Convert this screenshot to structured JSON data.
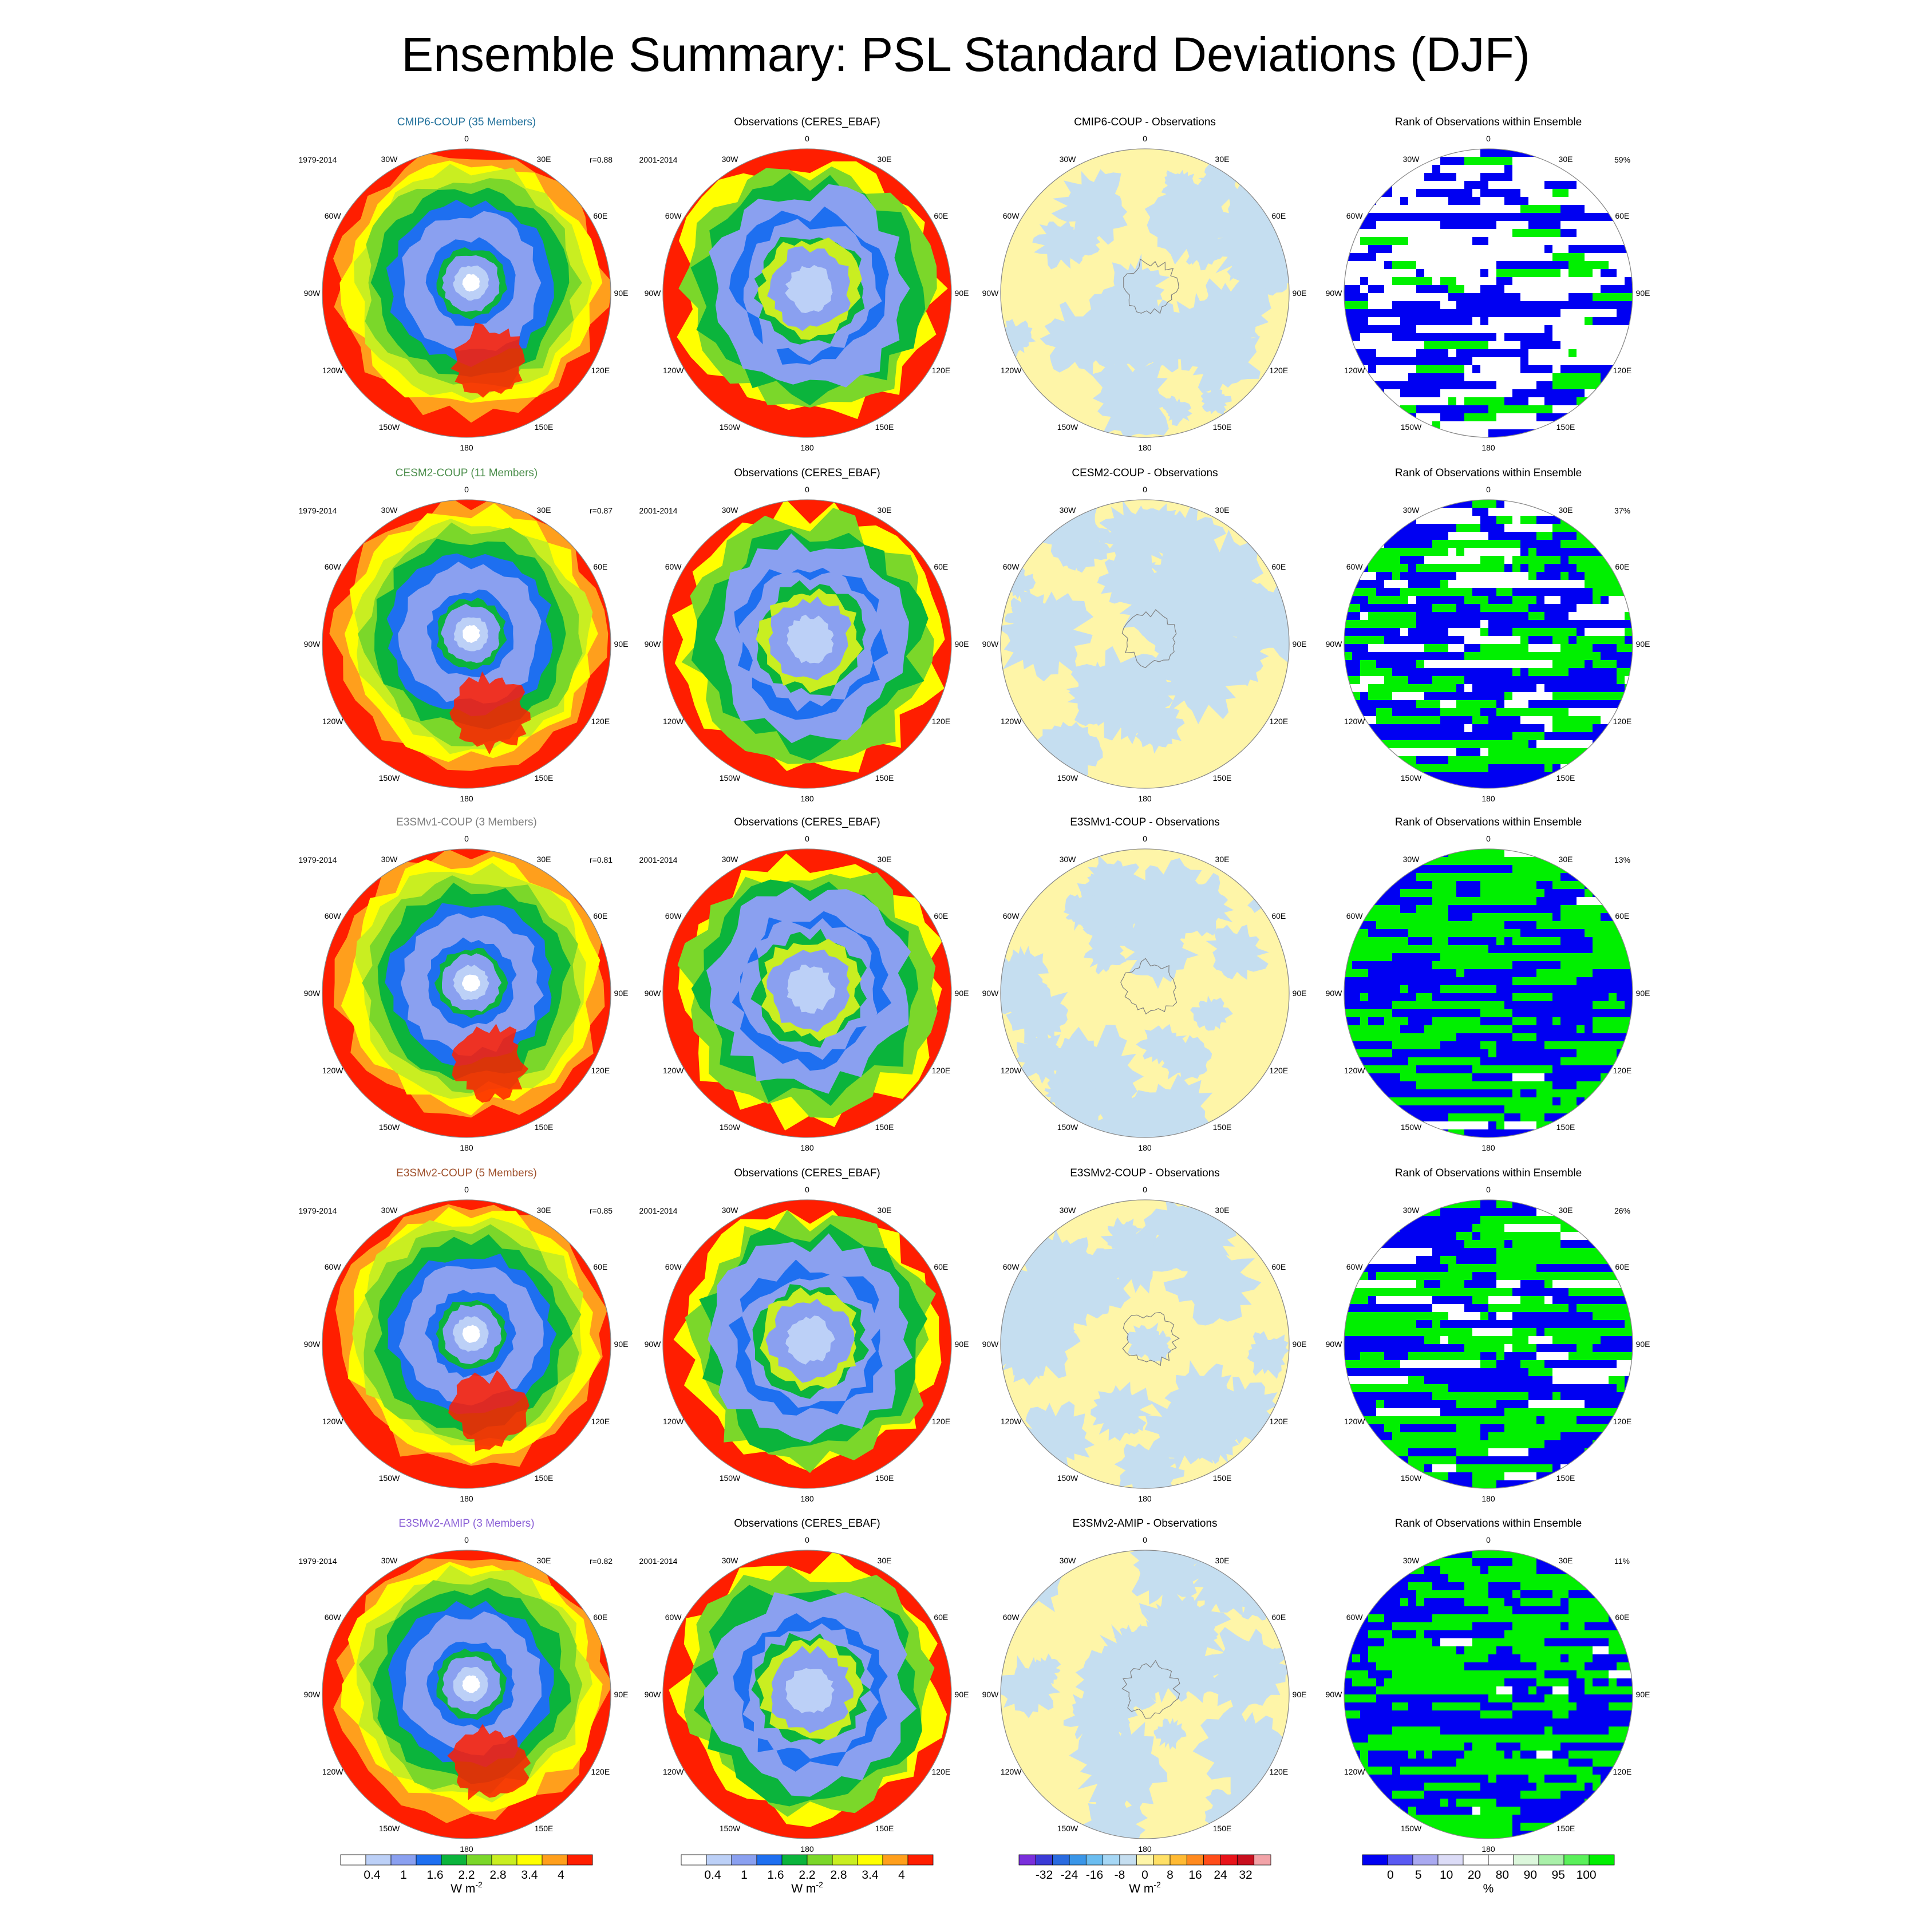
{
  "title": "Ensemble Summary: PSL Standard Deviations (DJF)",
  "lon_labels": [
    "0",
    "30E",
    "60E",
    "90E",
    "120E",
    "150E",
    "180",
    "150W",
    "120W",
    "90W",
    "60W",
    "30W"
  ],
  "colors": {
    "white": "#ffffff",
    "light_blue": "#bcd0f7",
    "periwinkle": "#8aa0f0",
    "blue": "#1e6ff0",
    "green": "#0bb43c",
    "light_green": "#7bd72a",
    "yellow_green": "#c9ee21",
    "yellow": "#ffff00",
    "orange": "#ff9f1c",
    "red": "#ff1e00",
    "diff_bg": "#fef5a8",
    "diff_neg": "#c5def0",
    "rank_blue": "#0000f2",
    "rank_green": "#00f000",
    "text_cmip6": "#1f6f9a",
    "text_cesm2": "#4d8f4d",
    "text_e3smv1": "#7f7f7f",
    "text_e3smv2coup": "#a0522d",
    "text_e3smv2amip": "#8a5fd6"
  },
  "rows": [
    {
      "model_title": "CMIP6-COUP (35 Members)",
      "model_color": "#1f6f9a",
      "model_period": "1979-2014",
      "model_corr": "r=0.88",
      "obs_title": "Observations (CERES_EBAF)",
      "obs_period": "2001-2014",
      "diff_title": "CMIP6-COUP - Observations",
      "rank_title": "Rank of Observations within Ensemble",
      "rank_pct": "59%",
      "rank_mix": {
        "blue": 0.35,
        "green": 0.12,
        "white": 0.53
      }
    },
    {
      "model_title": "CESM2-COUP (11 Members)",
      "model_color": "#4d8f4d",
      "model_period": "1979-2014",
      "model_corr": "r=0.87",
      "obs_title": "Observations (CERES_EBAF)",
      "obs_period": "2001-2014",
      "diff_title": "CESM2-COUP - Observations",
      "rank_title": "Rank of Observations within Ensemble",
      "rank_pct": "37%",
      "rank_mix": {
        "blue": 0.42,
        "green": 0.4,
        "white": 0.18
      }
    },
    {
      "model_title": "E3SMv1-COUP (3 Members)",
      "model_color": "#7f7f7f",
      "model_period": "1979-2014",
      "model_corr": "r=0.81",
      "obs_title": "Observations (CERES_EBAF)",
      "obs_period": "2001-2014",
      "diff_title": "E3SMv1-COUP - Observations",
      "rank_title": "Rank of Observations within Ensemble",
      "rank_pct": "13%",
      "rank_mix": {
        "blue": 0.52,
        "green": 0.46,
        "white": 0.02
      }
    },
    {
      "model_title": "E3SMv2-COUP (5 Members)",
      "model_color": "#a0522d",
      "model_period": "1979-2014",
      "model_corr": "r=0.85",
      "obs_title": "Observations (CERES_EBAF)",
      "obs_period": "2001-2014",
      "diff_title": "E3SMv2-COUP - Observations",
      "rank_title": "Rank of Observations within Ensemble",
      "rank_pct": "26%",
      "rank_mix": {
        "blue": 0.45,
        "green": 0.43,
        "white": 0.12
      }
    },
    {
      "model_title": "E3SMv2-AMIP (3 Members)",
      "model_color": "#8a5fd6",
      "model_period": "1979-2014",
      "model_corr": "r=0.82",
      "obs_title": "Observations (CERES_EBAF)",
      "obs_period": "2001-2014",
      "diff_title": "E3SMv2-AMIP - Observations",
      "rank_title": "Rank of Observations within Ensemble",
      "rank_pct": "11%",
      "rank_mix": {
        "blue": 0.48,
        "green": 0.5,
        "white": 0.02
      }
    }
  ],
  "colorbars": [
    {
      "name": "model-colorbar",
      "colors": [
        "#ffffff",
        "#bcd0f7",
        "#8aa0f0",
        "#1e6ff0",
        "#0bb43c",
        "#7bd72a",
        "#c9ee21",
        "#ffff00",
        "#ff9f1c",
        "#ff1e00"
      ],
      "labels": [
        "0.4",
        "1",
        "1.6",
        "2.2",
        "2.8",
        "3.4",
        "4"
      ],
      "unit": "W m",
      "unit_exp": "-2"
    },
    {
      "name": "obs-colorbar",
      "colors": [
        "#ffffff",
        "#bcd0f7",
        "#8aa0f0",
        "#1e6ff0",
        "#0bb43c",
        "#7bd72a",
        "#c9ee21",
        "#ffff00",
        "#ff9f1c",
        "#ff1e00"
      ],
      "labels": [
        "0.4",
        "1",
        "1.6",
        "2.2",
        "2.8",
        "3.4",
        "4"
      ],
      "unit": "W m",
      "unit_exp": "-2"
    },
    {
      "name": "diff-colorbar",
      "colors": [
        "#7a2fdb",
        "#3b3bd6",
        "#2a6be0",
        "#3a96e8",
        "#6bbdf0",
        "#a6d7f5",
        "#c5def0",
        "#fef5a8",
        "#ffe066",
        "#ffba33",
        "#ff8a1f",
        "#ff4d1a",
        "#e8141a",
        "#c80f1e",
        "#f2a3a8"
      ],
      "labels": [
        "-32",
        "-24",
        "-16",
        "-8",
        "0",
        "8",
        "16",
        "24",
        "32"
      ],
      "unit": "W m",
      "unit_exp": "-2"
    },
    {
      "name": "rank-colorbar",
      "colors": [
        "#0000f2",
        "#5a5af2",
        "#a9a9f0",
        "#dcdcf7",
        "#ffffff",
        "#ffffff",
        "#dcf7dc",
        "#a9f0a9",
        "#5af05a",
        "#00f000"
      ],
      "labels": [
        "0",
        "5",
        "10",
        "20",
        "80",
        "90",
        "95",
        "100"
      ],
      "unit": "%",
      "unit_exp": ""
    }
  ]
}
